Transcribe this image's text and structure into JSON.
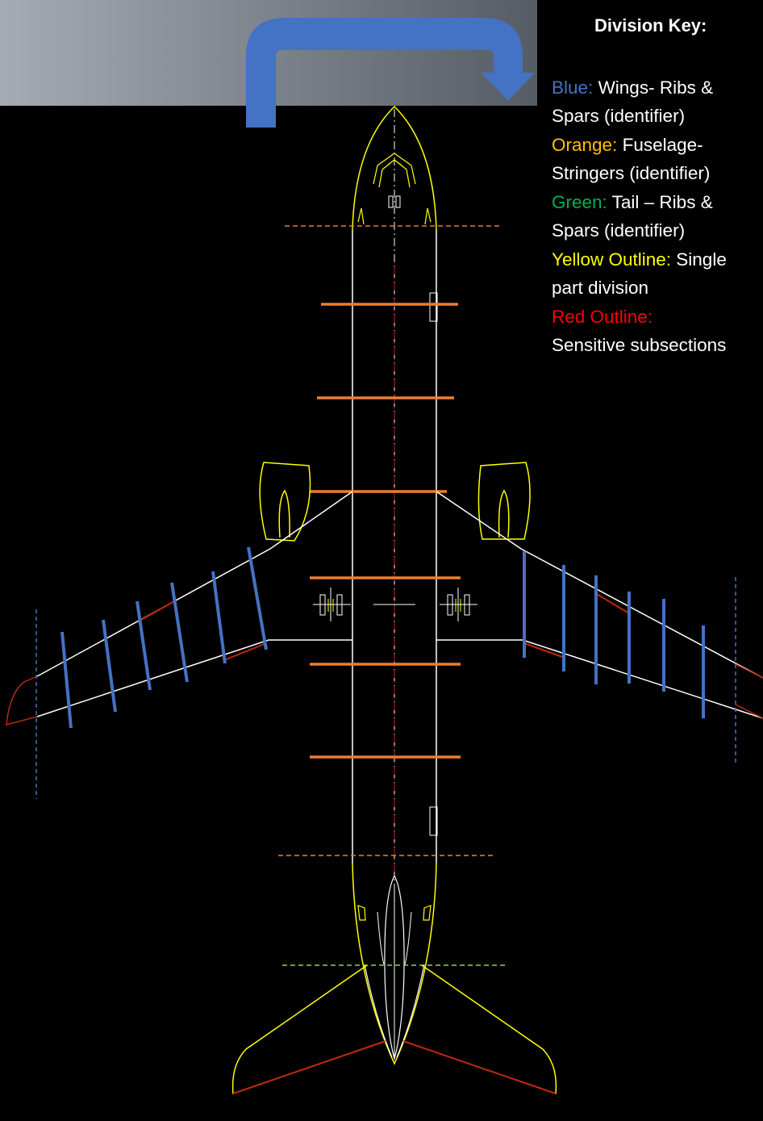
{
  "key": {
    "title": "Division Key:",
    "items": [
      {
        "label": "Blue:",
        "text1": "Wings- Ribs &",
        "text2": "Spars (identifier)",
        "color": "#4472c4"
      },
      {
        "label": "Orange:",
        "text1": "Fuselage-",
        "text2": "Stringers (identifier)",
        "color": "#ffc000"
      },
      {
        "label": "Green:",
        "text1": "Tail – Ribs &",
        "text2": "Spars (identifier)",
        "color": "#00b050"
      },
      {
        "label": "Yellow Outline:",
        "text1": "Single",
        "text2": "part division",
        "color": "#ffff00"
      },
      {
        "label": "Red Outline:",
        "text1": "",
        "text2": "Sensitive subsections",
        "color": "#ff0000"
      }
    ]
  },
  "colors": {
    "wing_rib": "#4472c4",
    "stringer": "#ed7d31",
    "outline": "#ffff00",
    "sensitive": "#c0280b",
    "structure": "#ffffff",
    "tail_divider": "#92d050",
    "arrow": "#4472c4",
    "banner_start": "#a6abb3",
    "banner_end": "#555c66"
  },
  "icons": {
    "direction_arrow": "curved-arrow-icon"
  }
}
